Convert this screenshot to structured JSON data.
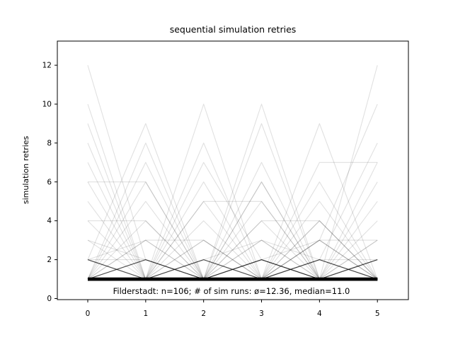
{
  "chart_data": {
    "type": "line",
    "title": "sequential simulation retries",
    "xlabel": "",
    "ylabel": "simulation retries",
    "annotation": "Filderstadt: n=106; # of sim runs: ø=12.36, median=11.0",
    "n_runs": 106,
    "x": [
      0,
      1,
      2,
      3,
      4,
      5
    ],
    "xticks": [
      "0",
      "1",
      "2",
      "3",
      "4",
      "5"
    ],
    "yticks": [
      "0",
      "2",
      "4",
      "6",
      "8",
      "10",
      "12"
    ],
    "ytick_values": [
      0,
      2,
      4,
      6,
      8,
      10,
      12
    ],
    "xlim": [
      -0.53,
      5.53
    ],
    "ylim": [
      -0.06,
      13.25
    ],
    "grid": false,
    "legend": "none",
    "line_color": "#000000",
    "line_alpha": 0.12,
    "background_color": "#ffffff",
    "runs": [
      {
        "y": [
          1,
          1,
          1,
          1,
          1,
          1
        ],
        "count": 29
      },
      {
        "y": [
          2,
          1,
          1,
          1,
          1,
          1
        ],
        "count": 3
      },
      {
        "y": [
          1,
          2,
          1,
          1,
          1,
          1
        ],
        "count": 3
      },
      {
        "y": [
          1,
          1,
          2,
          1,
          1,
          1
        ],
        "count": 2
      },
      {
        "y": [
          1,
          1,
          1,
          2,
          1,
          1
        ],
        "count": 2
      },
      {
        "y": [
          1,
          1,
          1,
          1,
          2,
          1
        ],
        "count": 2
      },
      {
        "y": [
          1,
          1,
          1,
          1,
          1,
          2
        ],
        "count": 3
      },
      {
        "y": [
          2,
          1,
          2,
          1,
          2,
          1
        ],
        "count": 1
      },
      {
        "y": [
          1,
          2,
          1,
          2,
          1,
          2
        ],
        "count": 1
      },
      {
        "y": [
          3,
          1,
          1,
          2,
          1,
          1
        ],
        "count": 1
      },
      {
        "y": [
          1,
          3,
          1,
          1,
          2,
          1
        ],
        "count": 1
      },
      {
        "y": [
          2,
          3,
          1,
          1,
          1,
          2
        ],
        "count": 1
      },
      {
        "y": [
          1,
          1,
          3,
          1,
          1,
          1
        ],
        "count": 1
      },
      {
        "y": [
          1,
          1,
          1,
          3,
          1,
          1
        ],
        "count": 1
      },
      {
        "y": [
          1,
          2,
          1,
          1,
          3,
          1
        ],
        "count": 1
      },
      {
        "y": [
          1,
          1,
          1,
          1,
          3,
          1
        ],
        "count": 1
      },
      {
        "y": [
          1,
          1,
          1,
          2,
          3,
          1
        ],
        "count": 1
      },
      {
        "y": [
          2,
          1,
          1,
          1,
          1,
          3
        ],
        "count": 1
      },
      {
        "y": [
          1,
          1,
          2,
          1,
          1,
          3
        ],
        "count": 1
      },
      {
        "y": [
          2,
          2,
          1,
          1,
          2,
          2
        ],
        "count": 1
      },
      {
        "y": [
          3,
          2,
          1,
          2,
          1,
          1
        ],
        "count": 1
      },
      {
        "y": [
          1,
          1,
          2,
          3,
          2,
          1
        ],
        "count": 1
      },
      {
        "y": [
          2,
          1,
          3,
          1,
          2,
          1
        ],
        "count": 1
      },
      {
        "y": [
          4,
          1,
          1,
          2,
          1,
          1
        ],
        "count": 1
      },
      {
        "y": [
          1,
          4,
          1,
          1,
          1,
          2
        ],
        "count": 1
      },
      {
        "y": [
          1,
          1,
          4,
          1,
          1,
          1
        ],
        "count": 1
      },
      {
        "y": [
          2,
          1,
          1,
          4,
          1,
          1
        ],
        "count": 1
      },
      {
        "y": [
          1,
          1,
          1,
          1,
          4,
          1
        ],
        "count": 2
      },
      {
        "y": [
          1,
          2,
          1,
          1,
          1,
          4
        ],
        "count": 1
      },
      {
        "y": [
          5,
          1,
          2,
          1,
          1,
          1
        ],
        "count": 1
      },
      {
        "y": [
          1,
          5,
          1,
          2,
          1,
          1
        ],
        "count": 1
      },
      {
        "y": [
          1,
          1,
          5,
          1,
          2,
          1
        ],
        "count": 1
      },
      {
        "y": [
          1,
          1,
          1,
          5,
          1,
          2
        ],
        "count": 1
      },
      {
        "y": [
          2,
          1,
          1,
          1,
          5,
          1
        ],
        "count": 1
      },
      {
        "y": [
          1,
          1,
          2,
          1,
          1,
          5
        ],
        "count": 1
      },
      {
        "y": [
          6,
          1,
          1,
          1,
          2,
          1
        ],
        "count": 1
      },
      {
        "y": [
          1,
          6,
          1,
          1,
          1,
          1
        ],
        "count": 1
      },
      {
        "y": [
          1,
          1,
          6,
          1,
          1,
          2
        ],
        "count": 1
      },
      {
        "y": [
          1,
          1,
          1,
          6,
          1,
          1
        ],
        "count": 2
      },
      {
        "y": [
          1,
          2,
          1,
          1,
          6,
          1
        ],
        "count": 1
      },
      {
        "y": [
          1,
          1,
          1,
          2,
          1,
          6
        ],
        "count": 1
      },
      {
        "y": [
          6,
          6,
          1,
          1,
          1,
          1
        ],
        "count": 1
      },
      {
        "y": [
          4,
          4,
          1,
          2,
          1,
          1
        ],
        "count": 1
      },
      {
        "y": [
          1,
          1,
          5,
          5,
          1,
          1
        ],
        "count": 1
      },
      {
        "y": [
          1,
          1,
          1,
          4,
          4,
          1
        ],
        "count": 1
      },
      {
        "y": [
          1,
          1,
          1,
          1,
          7,
          7
        ],
        "count": 1
      },
      {
        "y": [
          1,
          3,
          3,
          1,
          1,
          1
        ],
        "count": 1
      },
      {
        "y": [
          1,
          1,
          1,
          1,
          3,
          3
        ],
        "count": 1
      },
      {
        "y": [
          12,
          2,
          1,
          1,
          1,
          1
        ],
        "count": 1
      },
      {
        "y": [
          10,
          1,
          1,
          1,
          1,
          2
        ],
        "count": 1
      },
      {
        "y": [
          9,
          1,
          2,
          1,
          1,
          1
        ],
        "count": 1
      },
      {
        "y": [
          8,
          1,
          1,
          1,
          1,
          1
        ],
        "count": 1
      },
      {
        "y": [
          7,
          1,
          1,
          2,
          1,
          1
        ],
        "count": 1
      },
      {
        "y": [
          2,
          9,
          1,
          1,
          2,
          1
        ],
        "count": 1
      },
      {
        "y": [
          1,
          8,
          1,
          2,
          1,
          1
        ],
        "count": 1
      },
      {
        "y": [
          1,
          7,
          1,
          1,
          1,
          2
        ],
        "count": 1
      },
      {
        "y": [
          1,
          1,
          10,
          1,
          2,
          1
        ],
        "count": 1
      },
      {
        "y": [
          1,
          1,
          8,
          1,
          1,
          2
        ],
        "count": 1
      },
      {
        "y": [
          1,
          1,
          7,
          2,
          1,
          1
        ],
        "count": 1
      },
      {
        "y": [
          2,
          1,
          1,
          10,
          1,
          1
        ],
        "count": 1
      },
      {
        "y": [
          1,
          2,
          1,
          9,
          1,
          1
        ],
        "count": 1
      },
      {
        "y": [
          1,
          1,
          1,
          7,
          1,
          1
        ],
        "count": 1
      },
      {
        "y": [
          1,
          1,
          2,
          1,
          9,
          1
        ],
        "count": 1
      },
      {
        "y": [
          1,
          1,
          1,
          3,
          1,
          12
        ],
        "count": 1
      },
      {
        "y": [
          1,
          2,
          1,
          1,
          3,
          10
        ],
        "count": 1
      },
      {
        "y": [
          1,
          1,
          2,
          1,
          2,
          8
        ],
        "count": 1
      },
      {
        "y": [
          1,
          1,
          1,
          2,
          1,
          7
        ],
        "count": 1
      }
    ]
  }
}
